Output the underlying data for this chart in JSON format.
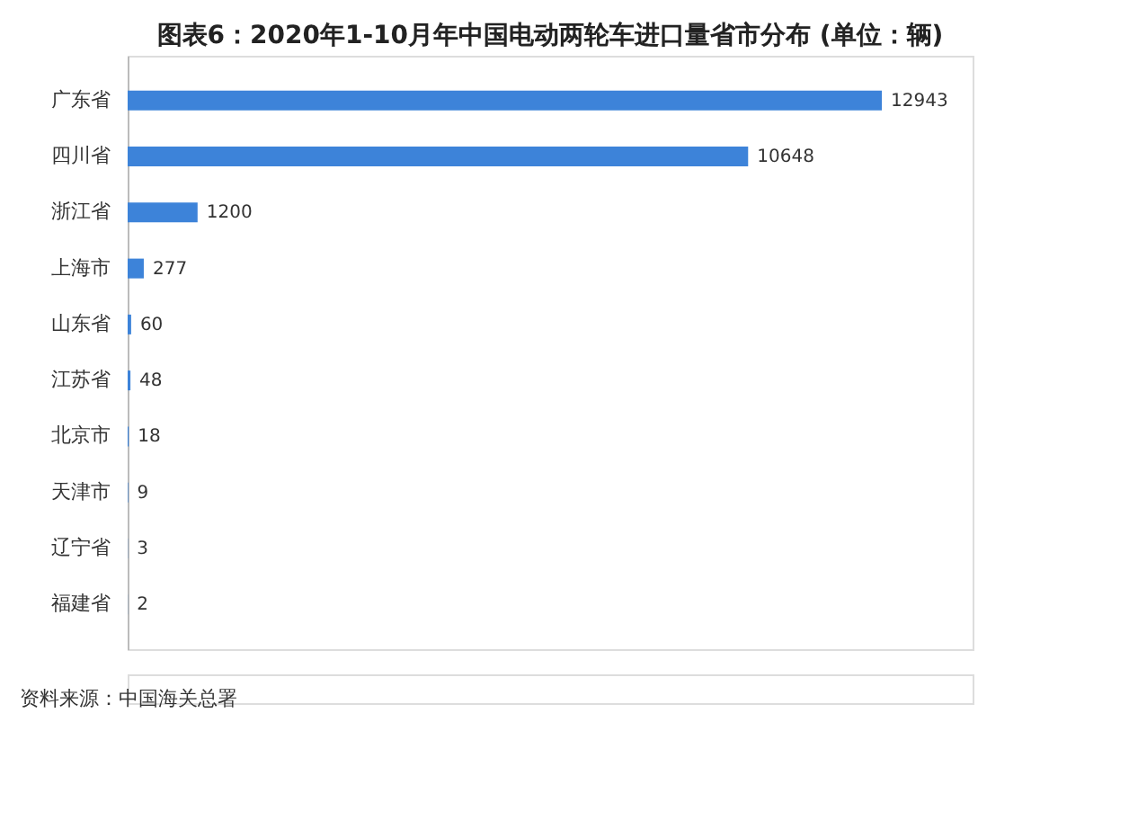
{
  "chart_data": {
    "type": "bar",
    "orientation": "horizontal",
    "title": "图表6：2020年1-10月年中国电动两轮车进口量省市分布 (单位：辆)",
    "categories": [
      "广东省",
      "四川省",
      "浙江省",
      "上海市",
      "山东省",
      "江苏省",
      "北京市",
      "天津市",
      "辽宁省",
      "福建省"
    ],
    "values": [
      12943,
      10648,
      1200,
      277,
      60,
      48,
      18,
      9,
      3,
      2
    ],
    "color": "#3d83d9",
    "data_labels": true,
    "xlim": [
      0,
      14500
    ],
    "tick_labels": "y",
    "annotations": [
      "资料来源：中国海关总署"
    ]
  }
}
